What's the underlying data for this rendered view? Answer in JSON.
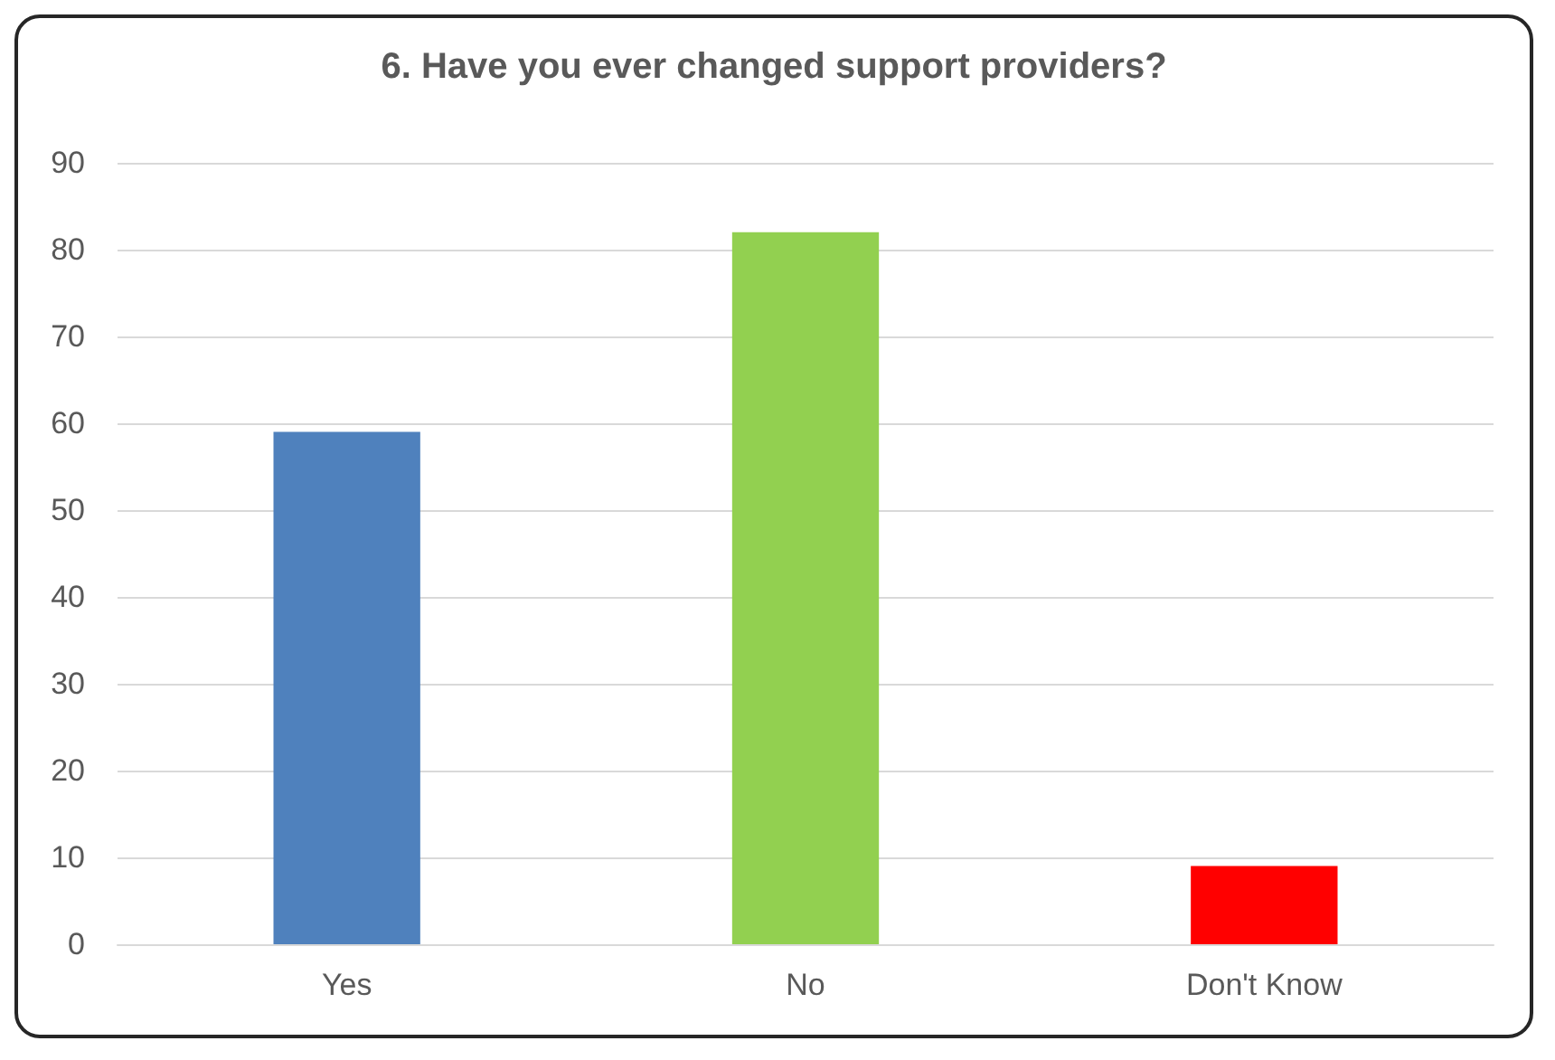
{
  "chart_data": {
    "type": "bar",
    "title": "6. Have you ever changed support providers?",
    "categories": [
      "Yes",
      "No",
      "Don't Know"
    ],
    "values": [
      59,
      82,
      9
    ],
    "colors": [
      "#4f81bd",
      "#92d050",
      "#ff0000"
    ],
    "ylim": [
      0,
      90
    ],
    "yticks": [
      0,
      10,
      20,
      30,
      40,
      50,
      60,
      70,
      80,
      90
    ],
    "grid": "y"
  }
}
